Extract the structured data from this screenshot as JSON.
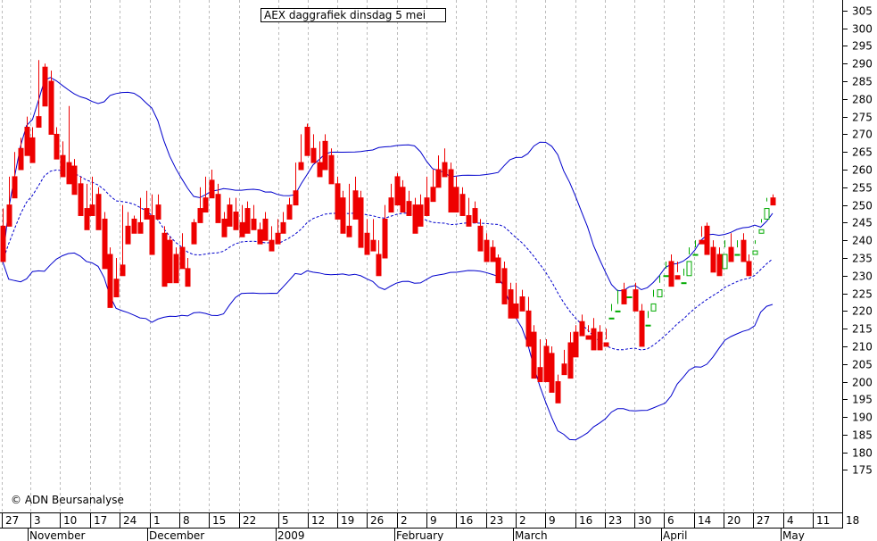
{
  "chart_data": {
    "type": "candlestick",
    "title": "AEX daggrafiek dinsdag 5 mei",
    "copyright": "© ADN Beursanalyse",
    "ylim": [
      163,
      308
    ],
    "y_ticks": [
      175,
      180,
      185,
      190,
      195,
      200,
      205,
      210,
      215,
      220,
      225,
      230,
      235,
      240,
      245,
      250,
      255,
      260,
      265,
      270,
      275,
      280,
      285,
      290,
      295,
      300,
      305
    ],
    "x_tick_labels": [
      "27",
      "3",
      "10",
      "17",
      "24",
      "1",
      "8",
      "15",
      "22",
      "5",
      "12",
      "19",
      "26",
      "2",
      "9",
      "16",
      "23",
      "2",
      "9",
      "16",
      "23",
      "30",
      "6",
      "14",
      "20",
      "27",
      "4",
      "11",
      "18"
    ],
    "month_labels": [
      "November",
      "December",
      "2009",
      "February",
      "March",
      "April",
      "May"
    ],
    "colors": {
      "up": "#00aa00",
      "down": "#ee0000",
      "band": "#0000cc",
      "grid": "#bbbbbb"
    },
    "candles": [
      [
        244,
        249,
        236,
        234
      ],
      [
        250,
        258,
        247,
        244
      ],
      [
        258,
        265,
        254,
        252
      ],
      [
        266,
        269,
        262,
        260
      ],
      [
        272,
        275,
        266,
        264
      ],
      [
        269,
        272,
        264,
        262
      ],
      [
        275,
        291,
        274,
        272
      ],
      [
        289,
        290,
        280,
        278
      ],
      [
        285,
        288,
        272,
        270
      ],
      [
        270,
        272,
        265,
        263
      ],
      [
        264,
        268,
        260,
        258
      ],
      [
        262,
        278,
        260,
        256
      ],
      [
        261,
        263,
        255,
        253
      ],
      [
        256,
        258,
        249,
        247
      ],
      [
        249,
        256,
        245,
        243
      ],
      [
        250,
        258,
        249,
        247
      ],
      [
        253,
        255,
        245,
        243
      ],
      [
        246,
        248,
        234,
        232
      ],
      [
        236,
        238,
        227,
        221
      ],
      [
        229,
        235,
        226,
        224
      ],
      [
        233,
        250,
        232,
        230
      ],
      [
        244,
        248,
        241,
        239
      ],
      [
        246,
        247,
        244,
        242
      ],
      [
        245,
        252,
        244,
        242
      ],
      [
        249,
        254,
        248,
        246
      ],
      [
        247,
        253,
        238,
        236
      ],
      [
        250,
        253,
        248,
        246
      ],
      [
        242,
        244,
        229,
        227
      ],
      [
        240,
        241,
        230,
        228
      ],
      [
        236,
        238,
        230,
        228
      ],
      [
        238,
        242,
        234,
        232
      ],
      [
        232,
        235,
        229,
        227
      ],
      [
        245,
        246,
        241,
        239
      ],
      [
        249,
        255,
        247,
        245
      ],
      [
        252,
        258,
        250,
        248
      ],
      [
        257,
        260,
        254,
        252
      ],
      [
        253,
        256,
        247,
        245
      ],
      [
        246,
        248,
        243,
        241
      ],
      [
        250,
        252,
        246,
        244
      ],
      [
        248,
        252,
        245,
        243
      ],
      [
        245,
        250,
        243,
        241
      ],
      [
        249,
        251,
        244,
        242
      ],
      [
        246,
        250,
        245,
        243
      ],
      [
        243,
        245,
        241,
        239
      ],
      [
        246,
        248,
        242,
        240
      ],
      [
        240,
        244,
        239,
        237
      ],
      [
        242,
        246,
        241,
        239
      ],
      [
        245,
        248,
        244,
        242
      ],
      [
        250,
        252,
        248,
        246
      ],
      [
        254,
        262,
        252,
        250
      ],
      [
        262,
        270,
        262,
        260
      ],
      [
        272,
        273,
        266,
        264
      ],
      [
        266,
        270,
        264,
        262
      ],
      [
        262,
        268,
        260,
        258
      ],
      [
        268,
        270,
        262,
        260
      ],
      [
        264,
        266,
        258,
        256
      ],
      [
        256,
        258,
        248,
        246
      ],
      [
        252,
        254,
        244,
        242
      ],
      [
        244,
        256,
        243,
        241
      ],
      [
        254,
        258,
        248,
        246
      ],
      [
        252,
        254,
        240,
        238
      ],
      [
        242,
        246,
        238,
        236
      ],
      [
        240,
        246,
        239,
        237
      ],
      [
        236,
        240,
        232,
        230
      ],
      [
        246,
        250,
        237,
        235
      ],
      [
        252,
        256,
        250,
        248
      ],
      [
        258,
        259,
        252,
        250
      ],
      [
        255,
        257,
        250,
        248
      ],
      [
        251,
        254,
        249,
        247
      ],
      [
        250,
        252,
        244,
        242
      ],
      [
        250,
        253,
        246,
        244
      ],
      [
        252,
        258,
        249,
        247
      ],
      [
        255,
        260,
        253,
        251
      ],
      [
        260,
        264,
        257,
        255
      ],
      [
        262,
        266,
        260,
        258
      ],
      [
        260,
        262,
        250,
        248
      ],
      [
        255,
        258,
        250,
        248
      ],
      [
        253,
        255,
        249,
        247
      ],
      [
        247,
        252,
        246,
        244
      ],
      [
        249,
        251,
        247,
        245
      ],
      [
        244,
        246,
        239,
        237
      ],
      [
        240,
        242,
        236,
        234
      ],
      [
        238,
        240,
        236,
        234
      ],
      [
        235,
        236,
        230,
        228
      ],
      [
        232,
        234,
        224,
        222
      ],
      [
        226,
        228,
        220,
        218
      ],
      [
        222,
        228,
        220,
        218
      ],
      [
        224,
        226,
        222,
        220
      ],
      [
        220,
        224,
        212,
        210
      ],
      [
        214,
        216,
        203,
        201
      ],
      [
        204,
        212,
        202,
        200
      ],
      [
        210,
        212,
        202,
        200
      ],
      [
        208,
        210,
        199,
        197
      ],
      [
        200,
        202,
        196,
        194
      ],
      [
        205,
        209,
        204,
        202
      ],
      [
        211,
        214,
        203,
        201
      ],
      [
        214,
        216,
        209,
        207
      ],
      [
        217,
        219,
        215,
        213
      ],
      [
        213,
        216,
        214,
        212
      ],
      [
        215,
        218,
        211,
        209
      ],
      [
        214,
        216,
        211,
        209
      ],
      [
        211,
        215,
        212,
        210
      ],
      [
        218,
        222,
        220,
        218
      ],
      [
        220,
        226,
        222,
        220
      ],
      [
        226,
        228,
        224,
        222
      ],
      [
        224,
        226,
        226,
        224
      ],
      [
        226,
        228,
        222,
        220
      ],
      [
        220,
        222,
        212,
        210
      ],
      [
        216,
        220,
        218,
        216
      ],
      [
        220,
        226,
        224,
        222
      ],
      [
        224,
        230,
        228,
        226
      ],
      [
        230,
        234,
        232,
        230
      ],
      [
        234,
        236,
        229,
        227
      ],
      [
        230,
        234,
        231,
        229
      ],
      [
        228,
        232,
        230,
        228
      ],
      [
        230,
        238,
        236,
        234
      ],
      [
        236,
        240,
        238,
        236
      ],
      [
        240,
        244,
        241,
        239
      ],
      [
        244,
        245,
        238,
        236
      ],
      [
        238,
        240,
        233,
        231
      ],
      [
        236,
        238,
        232,
        230
      ],
      [
        232,
        240,
        238,
        236
      ],
      [
        238,
        242,
        236,
        234
      ],
      [
        236,
        240,
        238,
        236
      ],
      [
        240,
        242,
        236,
        234
      ],
      [
        234,
        236,
        232,
        230
      ],
      [
        236,
        240,
        239,
        237
      ],
      [
        242,
        246,
        245,
        243
      ],
      [
        246,
        252,
        251,
        249
      ],
      [
        252,
        253,
        252,
        250
      ]
    ]
  }
}
